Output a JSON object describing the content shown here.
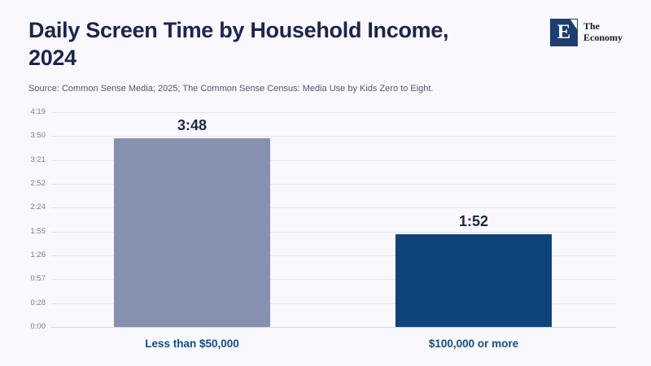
{
  "page": {
    "background": "#f8f8fd"
  },
  "header": {
    "title_line1": "Daily Screen Time by Household Income,",
    "title_line2": "2024",
    "source": "Source: Common Sense Media; 2025; The Common Sense Census: Media Use by Kids Zero to Eight.",
    "logo": {
      "mark_letter": "E",
      "name_line1": "The",
      "name_line2": "Economy",
      "square_color": "#1d3e6e"
    }
  },
  "chart_data": {
    "type": "bar",
    "title": "Daily Screen Time by Household Income, 2024",
    "categories": [
      "Less than $50,000",
      "$100,000 or more"
    ],
    "values_minutes": [
      228,
      112
    ],
    "value_labels": [
      "3:48",
      "1:52"
    ],
    "bar_colors": [
      "#8591ae",
      "#0e4479"
    ],
    "y_ticks": [
      "4:19",
      "3:50",
      "3:21",
      "2:52",
      "2:24",
      "1:55",
      "1:26",
      "0:57",
      "0:28",
      "0:00"
    ],
    "ylim_minutes": [
      0,
      259
    ],
    "unit": "hours:minutes per day",
    "grid": true,
    "legend": false,
    "colors": {
      "title": "#1c2451",
      "source": "#4e5872",
      "tick": "#757d9b",
      "grid": "#e2e4ee",
      "value_label": "#1b2548",
      "category_label": "#164a87"
    }
  }
}
